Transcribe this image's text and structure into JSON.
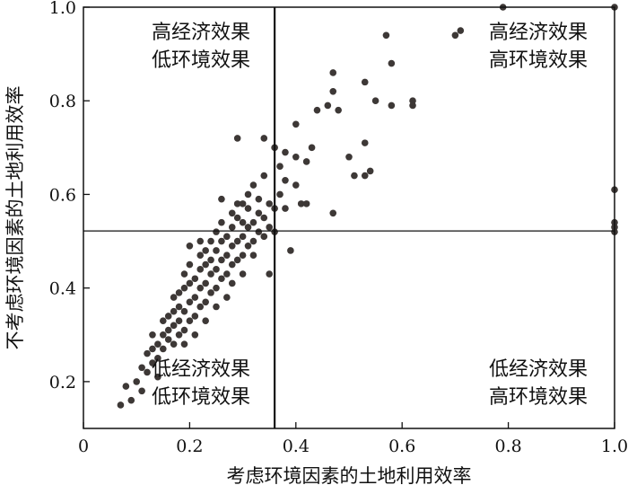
{
  "chart_data": {
    "type": "scatter",
    "title": "",
    "xlabel": "考虑环境因素的土地利用效率",
    "ylabel": "不考虑环境因素的土地利用效率",
    "xlim": [
      0,
      1.0
    ],
    "ylim": [
      0.1,
      1.0
    ],
    "x_ticks": [
      "0",
      "0.2",
      "0.4",
      "0.6",
      "0.8",
      "1.0"
    ],
    "y_ticks": [
      "0.2",
      "0.4",
      "0.6",
      "0.8",
      "1.0"
    ],
    "grid": false,
    "ref_x": 0.36,
    "ref_y": 0.522,
    "quadrants": {
      "top_left": [
        "高经济效果",
        "低环境效果"
      ],
      "top_right": [
        "高经济效果",
        "高环境效果"
      ],
      "bottom_left": [
        "低经济效果",
        "低环境效果"
      ],
      "bottom_right": [
        "低经济效果",
        "高环境效果"
      ]
    },
    "color": "#3d3836",
    "points": [
      [
        0.07,
        0.15
      ],
      [
        0.08,
        0.19
      ],
      [
        0.09,
        0.16
      ],
      [
        0.1,
        0.2
      ],
      [
        0.11,
        0.18
      ],
      [
        0.11,
        0.23
      ],
      [
        0.12,
        0.26
      ],
      [
        0.12,
        0.22
      ],
      [
        0.13,
        0.3
      ],
      [
        0.13,
        0.24
      ],
      [
        0.13,
        0.27
      ],
      [
        0.14,
        0.28
      ],
      [
        0.14,
        0.25
      ],
      [
        0.14,
        0.21
      ],
      [
        0.15,
        0.3
      ],
      [
        0.15,
        0.27
      ],
      [
        0.15,
        0.33
      ],
      [
        0.16,
        0.29
      ],
      [
        0.16,
        0.34
      ],
      [
        0.16,
        0.31
      ],
      [
        0.17,
        0.28
      ],
      [
        0.17,
        0.35
      ],
      [
        0.17,
        0.32
      ],
      [
        0.17,
        0.38
      ],
      [
        0.18,
        0.3
      ],
      [
        0.18,
        0.33
      ],
      [
        0.18,
        0.36
      ],
      [
        0.18,
        0.39
      ],
      [
        0.19,
        0.31
      ],
      [
        0.19,
        0.35
      ],
      [
        0.19,
        0.4
      ],
      [
        0.19,
        0.43
      ],
      [
        0.19,
        0.28
      ],
      [
        0.2,
        0.33
      ],
      [
        0.2,
        0.37
      ],
      [
        0.2,
        0.41
      ],
      [
        0.2,
        0.45
      ],
      [
        0.2,
        0.49
      ],
      [
        0.21,
        0.34
      ],
      [
        0.21,
        0.38
      ],
      [
        0.21,
        0.42
      ],
      [
        0.21,
        0.3
      ],
      [
        0.22,
        0.36
      ],
      [
        0.22,
        0.4
      ],
      [
        0.22,
        0.44
      ],
      [
        0.22,
        0.47
      ],
      [
        0.22,
        0.5
      ],
      [
        0.23,
        0.37
      ],
      [
        0.23,
        0.41
      ],
      [
        0.23,
        0.45
      ],
      [
        0.23,
        0.48
      ],
      [
        0.23,
        0.33
      ],
      [
        0.24,
        0.39
      ],
      [
        0.24,
        0.43
      ],
      [
        0.24,
        0.46
      ],
      [
        0.24,
        0.5
      ],
      [
        0.25,
        0.4
      ],
      [
        0.25,
        0.44
      ],
      [
        0.25,
        0.48
      ],
      [
        0.25,
        0.52
      ],
      [
        0.25,
        0.36
      ],
      [
        0.26,
        0.42
      ],
      [
        0.26,
        0.46
      ],
      [
        0.26,
        0.5
      ],
      [
        0.26,
        0.54
      ],
      [
        0.26,
        0.59
      ],
      [
        0.27,
        0.43
      ],
      [
        0.27,
        0.47
      ],
      [
        0.27,
        0.51
      ],
      [
        0.27,
        0.38
      ],
      [
        0.28,
        0.45
      ],
      [
        0.28,
        0.49
      ],
      [
        0.28,
        0.53
      ],
      [
        0.28,
        0.56
      ],
      [
        0.28,
        0.41
      ],
      [
        0.29,
        0.46
      ],
      [
        0.29,
        0.5
      ],
      [
        0.29,
        0.55
      ],
      [
        0.29,
        0.58
      ],
      [
        0.29,
        0.72
      ],
      [
        0.3,
        0.47
      ],
      [
        0.3,
        0.51
      ],
      [
        0.3,
        0.54
      ],
      [
        0.3,
        0.58
      ],
      [
        0.3,
        0.43
      ],
      [
        0.31,
        0.49
      ],
      [
        0.31,
        0.53
      ],
      [
        0.31,
        0.57
      ],
      [
        0.31,
        0.6
      ],
      [
        0.32,
        0.5
      ],
      [
        0.32,
        0.54
      ],
      [
        0.32,
        0.62
      ],
      [
        0.32,
        0.47
      ],
      [
        0.33,
        0.52
      ],
      [
        0.33,
        0.56
      ],
      [
        0.33,
        0.59
      ],
      [
        0.34,
        0.51
      ],
      [
        0.34,
        0.55
      ],
      [
        0.34,
        0.64
      ],
      [
        0.34,
        0.72
      ],
      [
        0.35,
        0.53
      ],
      [
        0.35,
        0.58
      ],
      [
        0.35,
        0.43
      ],
      [
        0.36,
        0.52
      ],
      [
        0.36,
        0.57
      ],
      [
        0.36,
        0.7
      ],
      [
        0.37,
        0.6
      ],
      [
        0.37,
        0.66
      ],
      [
        0.38,
        0.57
      ],
      [
        0.38,
        0.63
      ],
      [
        0.38,
        0.69
      ],
      [
        0.39,
        0.48
      ],
      [
        0.4,
        0.62
      ],
      [
        0.4,
        0.68
      ],
      [
        0.4,
        0.75
      ],
      [
        0.41,
        0.58
      ],
      [
        0.42,
        0.67
      ],
      [
        0.42,
        0.58
      ],
      [
        0.43,
        0.7
      ],
      [
        0.44,
        0.78
      ],
      [
        0.46,
        0.79
      ],
      [
        0.47,
        0.56
      ],
      [
        0.47,
        0.82
      ],
      [
        0.47,
        0.86
      ],
      [
        0.48,
        0.78
      ],
      [
        0.5,
        0.68
      ],
      [
        0.51,
        0.64
      ],
      [
        0.53,
        0.84
      ],
      [
        0.53,
        0.64
      ],
      [
        0.53,
        0.71
      ],
      [
        0.54,
        0.65
      ],
      [
        0.55,
        0.8
      ],
      [
        0.57,
        0.94
      ],
      [
        0.58,
        0.88
      ],
      [
        0.58,
        0.79
      ],
      [
        0.62,
        0.8
      ],
      [
        0.62,
        0.79
      ],
      [
        0.7,
        0.94
      ],
      [
        0.71,
        0.95
      ],
      [
        0.79,
        1.0
      ],
      [
        1.0,
        1.0
      ],
      [
        1.0,
        0.61
      ],
      [
        1.0,
        0.54
      ],
      [
        1.0,
        0.52
      ],
      [
        1.0,
        0.53
      ]
    ]
  }
}
